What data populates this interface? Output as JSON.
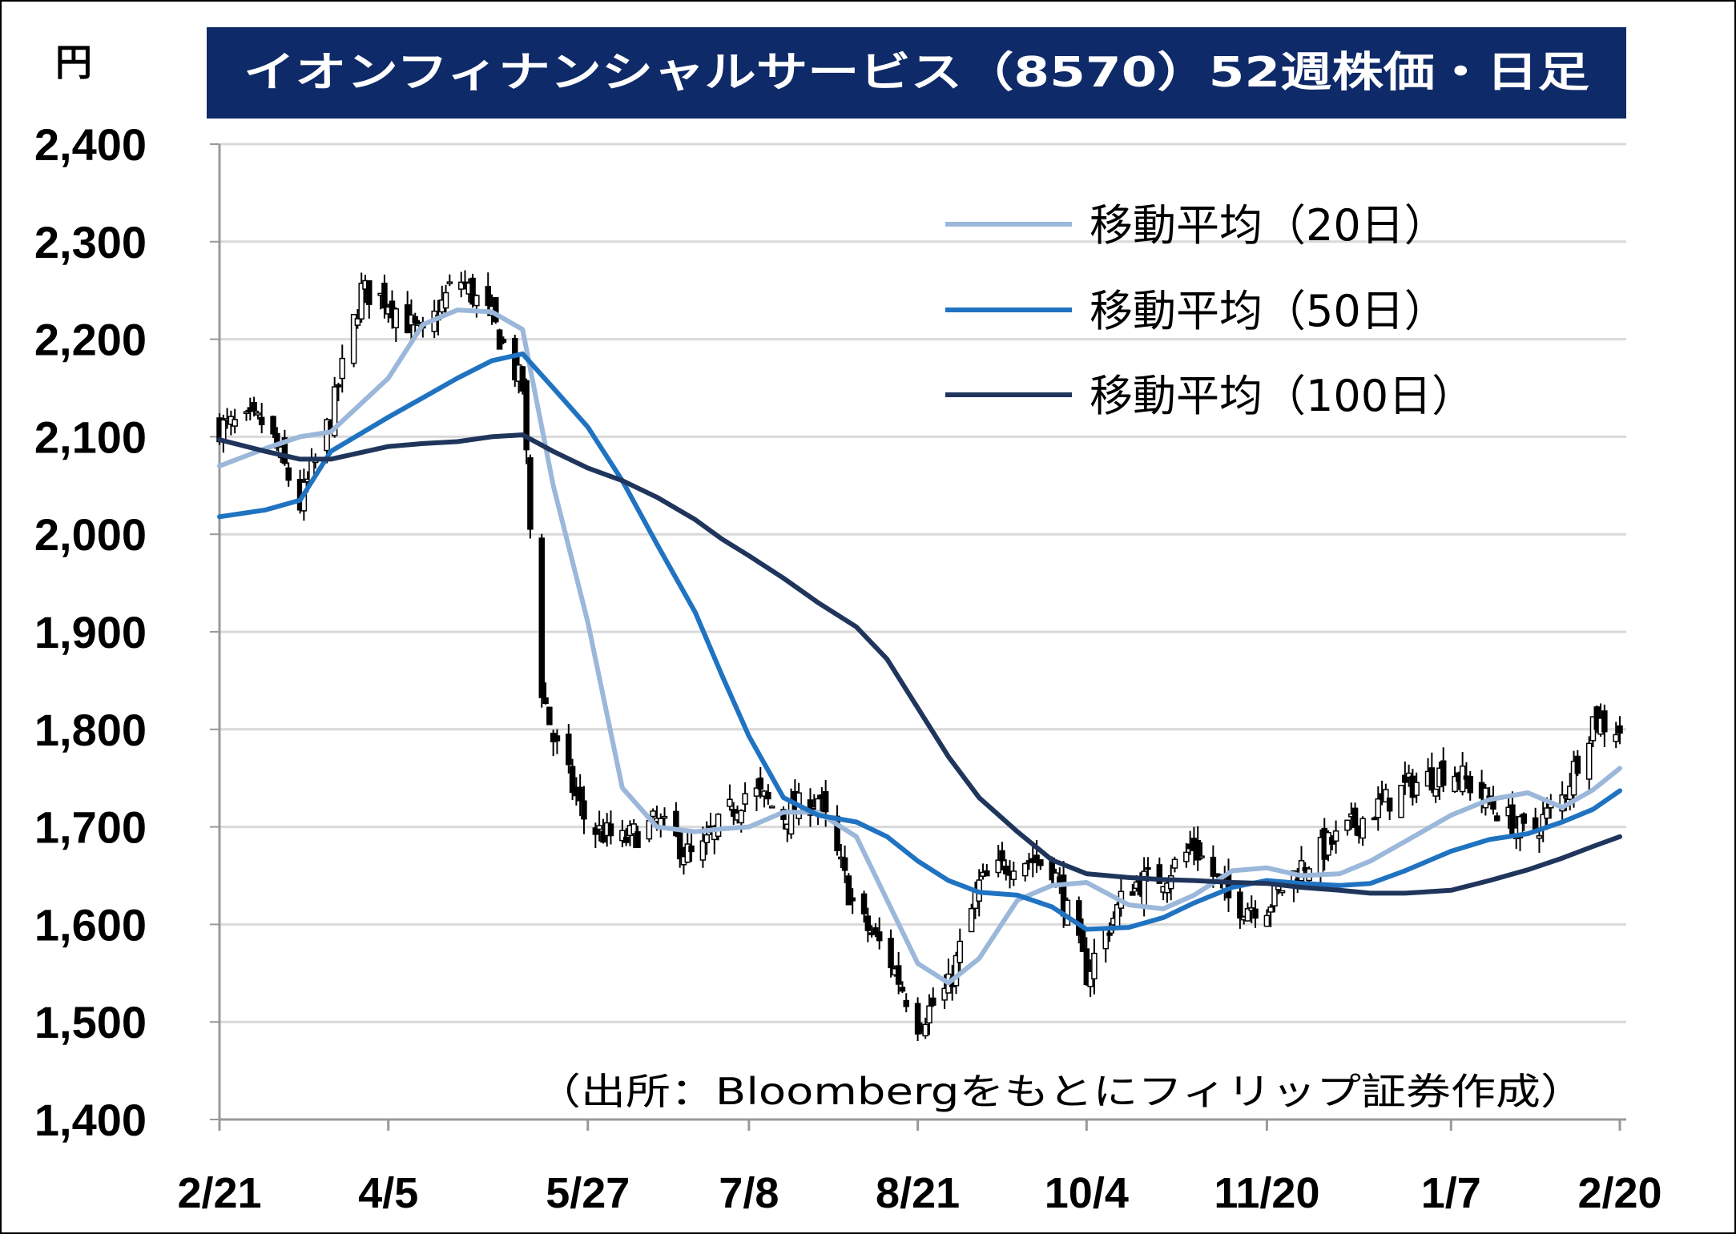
{
  "chart_data": {
    "type": "line",
    "title": "イオンフィナンシャルサービス（8570）52週株価・日足",
    "ylabel": "円",
    "source": "（出所：Bloombergをもとにフィリップ証券作成）",
    "ylim": [
      1400,
      2400
    ],
    "y_ticks": [
      "2,400",
      "2,300",
      "2,200",
      "2,100",
      "2,000",
      "1,900",
      "1,800",
      "1,700",
      "1,600",
      "1,500",
      "1,400"
    ],
    "x_ticks": [
      "2/21",
      "4/5",
      "5/27",
      "7/8",
      "8/21",
      "10/4",
      "11/20",
      "1/7",
      "2/20"
    ],
    "grid": true,
    "legend_position": "top-right",
    "colors": {
      "title_bg": "#0f2a68",
      "ma20": "#9bb7da",
      "ma50": "#1f73c1",
      "ma100": "#1f355c",
      "candle": "#000000",
      "grid": "#d9d9d9"
    },
    "series": [
      {
        "name": "移動平均（20日）",
        "values": [
          {
            "x": "2/21",
            "y": 2070
          },
          {
            "x": "3/4",
            "y": 2088
          },
          {
            "x": "3/13",
            "y": 2100
          },
          {
            "x": "3/21",
            "y": 2105
          },
          {
            "x": "4/5",
            "y": 2160
          },
          {
            "x": "4/14",
            "y": 2215
          },
          {
            "x": "4/23",
            "y": 2230
          },
          {
            "x": "5/2",
            "y": 2228
          },
          {
            "x": "5/10",
            "y": 2210
          },
          {
            "x": "5/18",
            "y": 2050
          },
          {
            "x": "5/27",
            "y": 1910
          },
          {
            "x": "6/5",
            "y": 1740
          },
          {
            "x": "6/14",
            "y": 1700
          },
          {
            "x": "6/24",
            "y": 1695
          },
          {
            "x": "7/1",
            "y": 1698
          },
          {
            "x": "7/8",
            "y": 1700
          },
          {
            "x": "7/17",
            "y": 1715
          },
          {
            "x": "7/26",
            "y": 1715
          },
          {
            "x": "8/5",
            "y": 1690
          },
          {
            "x": "8/13",
            "y": 1625
          },
          {
            "x": "8/21",
            "y": 1560
          },
          {
            "x": "8/29",
            "y": 1540
          },
          {
            "x": "9/6",
            "y": 1565
          },
          {
            "x": "9/16",
            "y": 1625
          },
          {
            "x": "9/25",
            "y": 1640
          },
          {
            "x": "10/4",
            "y": 1643
          },
          {
            "x": "10/15",
            "y": 1620
          },
          {
            "x": "10/24",
            "y": 1616
          },
          {
            "x": "11/1",
            "y": 1630
          },
          {
            "x": "11/11",
            "y": 1655
          },
          {
            "x": "11/20",
            "y": 1658
          },
          {
            "x": "11/29",
            "y": 1650
          },
          {
            "x": "12/9",
            "y": 1652
          },
          {
            "x": "12/17",
            "y": 1665
          },
          {
            "x": "12/26",
            "y": 1685
          },
          {
            "x": "1/7",
            "y": 1712
          },
          {
            "x": "1/17",
            "y": 1728
          },
          {
            "x": "1/27",
            "y": 1735
          },
          {
            "x": "2/5",
            "y": 1720
          },
          {
            "x": "2/13",
            "y": 1738
          },
          {
            "x": "2/20",
            "y": 1760
          }
        ]
      },
      {
        "name": "移動平均（50日）",
        "values": [
          {
            "x": "2/21",
            "y": 2018
          },
          {
            "x": "3/4",
            "y": 2025
          },
          {
            "x": "3/13",
            "y": 2035
          },
          {
            "x": "3/21",
            "y": 2085
          },
          {
            "x": "4/5",
            "y": 2120
          },
          {
            "x": "4/14",
            "y": 2140
          },
          {
            "x": "4/23",
            "y": 2160
          },
          {
            "x": "5/2",
            "y": 2178
          },
          {
            "x": "5/10",
            "y": 2185
          },
          {
            "x": "5/18",
            "y": 2150
          },
          {
            "x": "5/27",
            "y": 2110
          },
          {
            "x": "6/5",
            "y": 2055
          },
          {
            "x": "6/14",
            "y": 1990
          },
          {
            "x": "6/24",
            "y": 1920
          },
          {
            "x": "7/1",
            "y": 1855
          },
          {
            "x": "7/8",
            "y": 1793
          },
          {
            "x": "7/17",
            "y": 1730
          },
          {
            "x": "7/26",
            "y": 1712
          },
          {
            "x": "8/5",
            "y": 1705
          },
          {
            "x": "8/13",
            "y": 1690
          },
          {
            "x": "8/21",
            "y": 1665
          },
          {
            "x": "8/29",
            "y": 1645
          },
          {
            "x": "9/6",
            "y": 1633
          },
          {
            "x": "9/16",
            "y": 1630
          },
          {
            "x": "9/25",
            "y": 1618
          },
          {
            "x": "10/4",
            "y": 1595
          },
          {
            "x": "10/15",
            "y": 1597
          },
          {
            "x": "10/24",
            "y": 1607
          },
          {
            "x": "11/1",
            "y": 1622
          },
          {
            "x": "11/11",
            "y": 1638
          },
          {
            "x": "11/20",
            "y": 1645
          },
          {
            "x": "11/29",
            "y": 1642
          },
          {
            "x": "12/9",
            "y": 1640
          },
          {
            "x": "12/17",
            "y": 1642
          },
          {
            "x": "12/26",
            "y": 1655
          },
          {
            "x": "1/7",
            "y": 1675
          },
          {
            "x": "1/17",
            "y": 1687
          },
          {
            "x": "1/27",
            "y": 1693
          },
          {
            "x": "2/5",
            "y": 1705
          },
          {
            "x": "2/13",
            "y": 1718
          },
          {
            "x": "2/20",
            "y": 1737
          }
        ]
      },
      {
        "name": "移動平均（100日）",
        "values": [
          {
            "x": "2/21",
            "y": 2097
          },
          {
            "x": "3/4",
            "y": 2085
          },
          {
            "x": "3/13",
            "y": 2077
          },
          {
            "x": "3/21",
            "y": 2077
          },
          {
            "x": "4/5",
            "y": 2090
          },
          {
            "x": "4/14",
            "y": 2093
          },
          {
            "x": "4/23",
            "y": 2095
          },
          {
            "x": "5/2",
            "y": 2100
          },
          {
            "x": "5/10",
            "y": 2102
          },
          {
            "x": "5/18",
            "y": 2085
          },
          {
            "x": "5/27",
            "y": 2068
          },
          {
            "x": "6/5",
            "y": 2055
          },
          {
            "x": "6/14",
            "y": 2038
          },
          {
            "x": "6/24",
            "y": 2015
          },
          {
            "x": "7/1",
            "y": 1995
          },
          {
            "x": "7/8",
            "y": 1978
          },
          {
            "x": "7/17",
            "y": 1955
          },
          {
            "x": "7/26",
            "y": 1930
          },
          {
            "x": "8/5",
            "y": 1905
          },
          {
            "x": "8/13",
            "y": 1872
          },
          {
            "x": "8/21",
            "y": 1822
          },
          {
            "x": "8/29",
            "y": 1772
          },
          {
            "x": "9/6",
            "y": 1730
          },
          {
            "x": "9/16",
            "y": 1695
          },
          {
            "x": "9/25",
            "y": 1666
          },
          {
            "x": "10/4",
            "y": 1652
          },
          {
            "x": "10/15",
            "y": 1648
          },
          {
            "x": "10/24",
            "y": 1646
          },
          {
            "x": "11/1",
            "y": 1645
          },
          {
            "x": "11/11",
            "y": 1643
          },
          {
            "x": "11/20",
            "y": 1642
          },
          {
            "x": "11/29",
            "y": 1638
          },
          {
            "x": "12/9",
            "y": 1635
          },
          {
            "x": "12/17",
            "y": 1632
          },
          {
            "x": "12/26",
            "y": 1632
          },
          {
            "x": "1/7",
            "y": 1635
          },
          {
            "x": "1/17",
            "y": 1645
          },
          {
            "x": "1/27",
            "y": 1656
          },
          {
            "x": "2/5",
            "y": 1668
          },
          {
            "x": "2/13",
            "y": 1680
          },
          {
            "x": "2/20",
            "y": 1690
          }
        ]
      },
      {
        "name": "",
        "values": [
          {
            "x": "2/21",
            "y": 2110
          },
          {
            "x": "3/4",
            "y": 2115
          },
          {
            "x": "3/13",
            "y": 2030
          },
          {
            "x": "3/21",
            "y": 2120
          },
          {
            "x": "3/29",
            "y": 2250
          },
          {
            "x": "4/5",
            "y": 2240
          },
          {
            "x": "4/14",
            "y": 2200
          },
          {
            "x": "4/23",
            "y": 2265
          },
          {
            "x": "5/2",
            "y": 2220
          },
          {
            "x": "5/10",
            "y": 2150
          },
          {
            "x": "5/14",
            "y": 1860
          },
          {
            "x": "5/18",
            "y": 1790
          },
          {
            "x": "5/27",
            "y": 1700
          },
          {
            "x": "6/5",
            "y": 1685
          },
          {
            "x": "6/14",
            "y": 1705
          },
          {
            "x": "6/24",
            "y": 1665
          },
          {
            "x": "7/1",
            "y": 1705
          },
          {
            "x": "7/8",
            "y": 1740
          },
          {
            "x": "7/17",
            "y": 1712
          },
          {
            "x": "7/26",
            "y": 1730
          },
          {
            "x": "8/5",
            "y": 1610
          },
          {
            "x": "8/13",
            "y": 1570
          },
          {
            "x": "8/21",
            "y": 1500
          },
          {
            "x": "8/29",
            "y": 1535
          },
          {
            "x": "9/6",
            "y": 1640
          },
          {
            "x": "9/16",
            "y": 1670
          },
          {
            "x": "9/25",
            "y": 1660
          },
          {
            "x": "10/4",
            "y": 1550
          },
          {
            "x": "10/15",
            "y": 1640
          },
          {
            "x": "10/24",
            "y": 1650
          },
          {
            "x": "11/1",
            "y": 1680
          },
          {
            "x": "11/11",
            "y": 1620
          },
          {
            "x": "11/20",
            "y": 1620
          },
          {
            "x": "11/29",
            "y": 1660
          },
          {
            "x": "12/9",
            "y": 1690
          },
          {
            "x": "12/17",
            "y": 1715
          },
          {
            "x": "12/26",
            "y": 1740
          },
          {
            "x": "1/7",
            "y": 1760
          },
          {
            "x": "1/17",
            "y": 1725
          },
          {
            "x": "1/27",
            "y": 1690
          },
          {
            "x": "2/5",
            "y": 1730
          },
          {
            "x": "2/13",
            "y": 1810
          },
          {
            "x": "2/20",
            "y": 1800
          }
        ]
      }
    ]
  }
}
